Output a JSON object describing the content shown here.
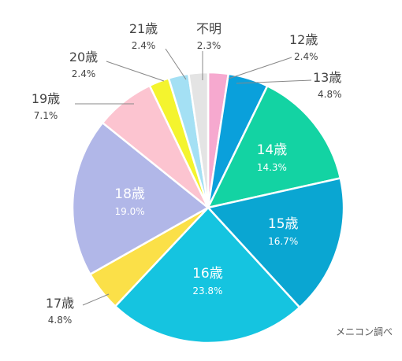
{
  "chart_data": {
    "type": "pie",
    "title": "",
    "categories": [
      "12歳",
      "13歳",
      "14歳",
      "15歳",
      "16歳",
      "17歳",
      "18歳",
      "19歳",
      "20歳",
      "21歳",
      "不明"
    ],
    "values": [
      2.4,
      4.8,
      14.3,
      16.7,
      23.8,
      4.8,
      19.0,
      7.1,
      2.4,
      2.4,
      2.3
    ],
    "value_labels": [
      "2.4%",
      "4.8%",
      "14.3%",
      "16.7%",
      "23.8%",
      "4.8%",
      "19.0%",
      "7.1%",
      "2.4%",
      "2.4%",
      "2.3%"
    ],
    "colors": [
      "#f6a9cf",
      "#0aa0db",
      "#13d3a3",
      "#0aa6d2",
      "#15c4e0",
      "#fbe048",
      "#b1b7e8",
      "#fcc4d0",
      "#f4f42e",
      "#a4e0f4",
      "#e4e4e4"
    ],
    "legend": "none",
    "start": "top, clockwise"
  },
  "source_note": "メニコン調べ"
}
